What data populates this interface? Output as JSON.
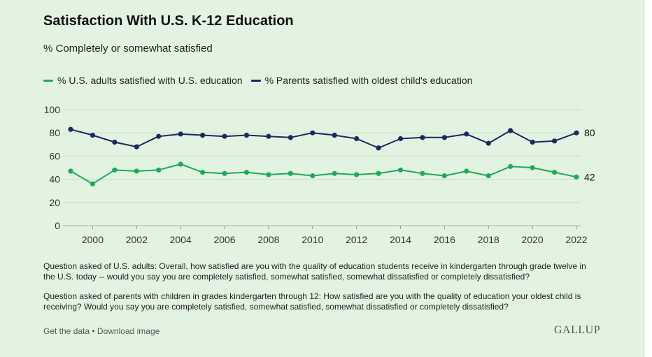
{
  "title": "Satisfaction With U.S. K-12 Education",
  "subtitle": "% Completely or somewhat satisfied",
  "colors": {
    "background": "#e3f3e1",
    "adults": "#1faa5a",
    "parents": "#1a2960",
    "grid": "#c7dcc5"
  },
  "chart_data": {
    "type": "line",
    "x": [
      1999,
      2000,
      2001,
      2002,
      2003,
      2004,
      2005,
      2006,
      2007,
      2008,
      2009,
      2010,
      2011,
      2012,
      2013,
      2014,
      2015,
      2016,
      2017,
      2018,
      2019,
      2020,
      2021,
      2022
    ],
    "xticks": [
      "2000",
      "2002",
      "2004",
      "2006",
      "2008",
      "2010",
      "2012",
      "2014",
      "2016",
      "2018",
      "2020",
      "2022"
    ],
    "yticks": [
      "0",
      "20",
      "40",
      "60",
      "80",
      "100"
    ],
    "ylim": [
      0,
      100
    ],
    "xlim": [
      1999,
      2022
    ],
    "grid": "horizontal",
    "legend_position": "top-left",
    "series": [
      {
        "name": "% U.S. adults satisfied with U.S. education",
        "color": "#1faa5a",
        "values": [
          47,
          36,
          48,
          47,
          48,
          53,
          46,
          45,
          46,
          44,
          45,
          43,
          45,
          44,
          45,
          48,
          45,
          43,
          47,
          43,
          51,
          50,
          46,
          42
        ],
        "end_label": "42"
      },
      {
        "name": "% Parents satisfied with oldest child's education",
        "color": "#1a2960",
        "values": [
          83,
          78,
          72,
          68,
          77,
          79,
          78,
          77,
          78,
          77,
          76,
          80,
          78,
          75,
          67,
          75,
          76,
          76,
          79,
          71,
          82,
          72,
          73,
          80
        ],
        "end_label": "80"
      }
    ]
  },
  "notes": {
    "adults": "Question asked of U.S. adults: Overall, how satisfied are you with the quality of education students receive in kindergarten through grade twelve in the U.S. today -- would you say you are completely satisfied, somewhat satisfied, somewhat dissatisfied or completely dissatisfied?",
    "parents": "Question asked of parents with children in grades kindergarten through 12: How satisfied are you with the quality of education your oldest child is receiving? Would you say you are completely satisfied, somewhat satisfied, somewhat dissatisfied or completely dissatisfied?"
  },
  "footer": {
    "get_data": "Get the data",
    "separator": " • ",
    "download": "Download image",
    "logo": "GALLUP"
  }
}
